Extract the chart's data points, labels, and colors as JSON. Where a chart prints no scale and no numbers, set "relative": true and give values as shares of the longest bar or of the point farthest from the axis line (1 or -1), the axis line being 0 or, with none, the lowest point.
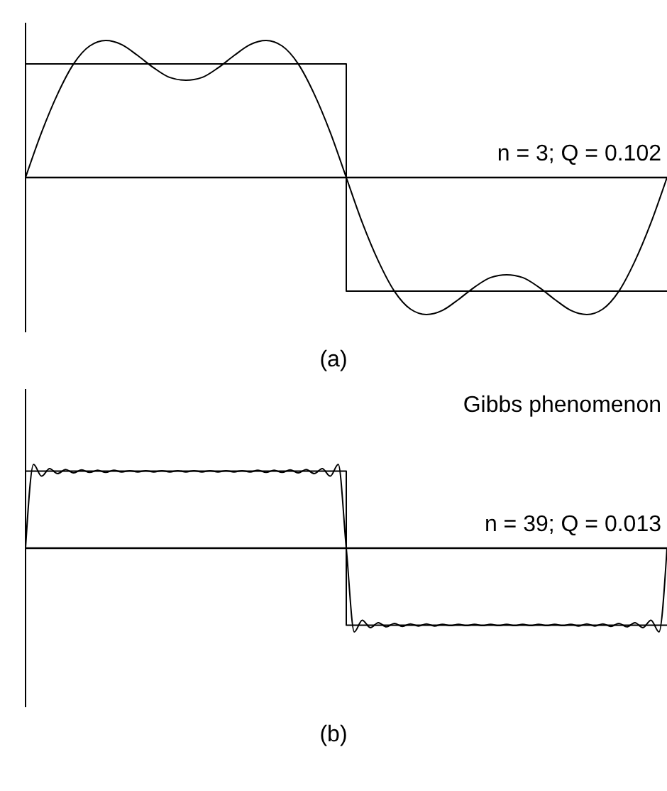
{
  "chart_data": [
    {
      "type": "line",
      "title": "(a)",
      "relative": true,
      "marker": "none",
      "annotations": [
        "n = 3; Q = 0.102"
      ],
      "ref_lines": [
        {
          "axis": "y",
          "value": 0,
          "color": "#000000"
        }
      ],
      "categories": [
        null,
        null,
        null,
        null,
        null,
        null,
        null,
        null,
        null,
        null,
        null,
        null,
        null,
        null,
        null,
        null,
        null,
        null,
        null,
        null,
        null,
        null,
        null,
        null,
        null,
        null,
        null,
        null,
        null,
        null,
        null,
        null,
        null,
        null,
        null,
        null,
        null,
        null,
        null,
        null,
        null
      ],
      "series": [
        {
          "type": "step",
          "color": "#000000",
          "values": [
            0.83,
            0.83,
            0.83,
            0.83,
            0.83,
            0.83,
            0.83,
            0.83,
            0.83,
            0.83,
            0.83,
            0.83,
            0.83,
            0.83,
            0.83,
            0.83,
            0.83,
            0.83,
            0.83,
            0.83,
            -0.83,
            -0.83,
            -0.83,
            -0.83,
            -0.83,
            -0.83,
            -0.83,
            -0.83,
            -0.83,
            -0.83,
            -0.83,
            -0.83,
            -0.83,
            -0.83,
            -0.83,
            -0.83,
            -0.83,
            -0.83,
            -0.83,
            -0.83,
            -0.83
          ]
        },
        {
          "type": "line",
          "color": "#000000",
          "values": [
            0,
            0.33,
            0.61,
            0.83,
            0.96,
            1.0,
            0.97,
            0.89,
            0.8,
            0.73,
            0.71,
            0.73,
            0.8,
            0.89,
            0.97,
            1.0,
            0.96,
            0.83,
            0.61,
            0.33,
            0,
            -0.33,
            -0.61,
            -0.83,
            -0.96,
            -1.0,
            -0.97,
            -0.89,
            -0.8,
            -0.73,
            -0.71,
            -0.73,
            -0.8,
            -0.89,
            -0.97,
            -1.0,
            -0.96,
            -0.83,
            -0.61,
            -0.33,
            0
          ]
        }
      ]
    },
    {
      "type": "line",
      "title": "(b)",
      "relative": true,
      "marker": "none",
      "annotations": [
        "Gibbs phenomenon",
        "n = 39; Q = 0.013"
      ],
      "ref_lines": [
        {
          "axis": "y",
          "value": 0,
          "color": "#000000"
        }
      ],
      "categories": [
        null,
        null,
        null,
        null,
        null,
        null,
        null,
        null,
        null,
        null,
        null,
        null,
        null,
        null,
        null,
        null,
        null,
        null,
        null,
        null,
        null,
        null,
        null,
        null,
        null,
        null,
        null,
        null,
        null,
        null,
        null,
        null,
        null,
        null,
        null,
        null,
        null,
        null,
        null,
        null,
        null,
        null,
        null,
        null,
        null,
        null,
        null,
        null,
        null,
        null,
        null,
        null,
        null,
        null,
        null,
        null,
        null,
        null,
        null,
        null,
        null,
        null,
        null,
        null,
        null,
        null,
        null,
        null,
        null,
        null,
        null,
        null,
        null,
        null,
        null,
        null,
        null,
        null,
        null,
        null,
        null
      ],
      "series": [
        {
          "type": "step",
          "color": "#000000",
          "values": [
            0.92,
            0.92,
            0.92,
            0.92,
            0.92,
            0.92,
            0.92,
            0.92,
            0.92,
            0.92,
            0.92,
            0.92,
            0.92,
            0.92,
            0.92,
            0.92,
            0.92,
            0.92,
            0.92,
            0.92,
            0.92,
            0.92,
            0.92,
            0.92,
            0.92,
            0.92,
            0.92,
            0.92,
            0.92,
            0.92,
            0.92,
            0.92,
            0.92,
            0.92,
            0.92,
            0.92,
            0.92,
            0.92,
            0.92,
            0.92,
            -0.92,
            -0.92,
            -0.92,
            -0.92,
            -0.92,
            -0.92,
            -0.92,
            -0.92,
            -0.92,
            -0.92,
            -0.92,
            -0.92,
            -0.92,
            -0.92,
            -0.92,
            -0.92,
            -0.92,
            -0.92,
            -0.92,
            -0.92,
            -0.92,
            -0.92,
            -0.92,
            -0.92,
            -0.92,
            -0.92,
            -0.92,
            -0.92,
            -0.92,
            -0.92,
            -0.92,
            -0.92,
            -0.92,
            -0.92,
            -0.92,
            -0.92,
            -0.92,
            -0.92,
            -0.92,
            -0.92,
            -0.92
          ]
        },
        {
          "type": "line",
          "color": "#000000",
          "values": [
            0,
            1.0,
            0.86,
            0.95,
            0.89,
            0.94,
            0.9,
            0.935,
            0.905,
            0.93,
            0.905,
            0.93,
            0.91,
            0.925,
            0.91,
            0.925,
            0.91,
            0.925,
            0.91,
            0.925,
            0.91,
            0.925,
            0.91,
            0.925,
            0.91,
            0.925,
            0.91,
            0.925,
            0.91,
            0.93,
            0.905,
            0.93,
            0.905,
            0.935,
            0.9,
            0.94,
            0.89,
            0.95,
            0.86,
            1.0,
            0,
            -1.0,
            -0.86,
            -0.95,
            -0.89,
            -0.94,
            -0.9,
            -0.935,
            -0.905,
            -0.93,
            -0.905,
            -0.93,
            -0.91,
            -0.925,
            -0.91,
            -0.925,
            -0.91,
            -0.925,
            -0.91,
            -0.925,
            -0.91,
            -0.925,
            -0.91,
            -0.925,
            -0.91,
            -0.925,
            -0.91,
            -0.925,
            -0.91,
            -0.93,
            -0.905,
            -0.93,
            -0.905,
            -0.935,
            -0.9,
            -0.94,
            -0.89,
            -0.95,
            -0.86,
            -1.0,
            0
          ]
        }
      ]
    }
  ]
}
